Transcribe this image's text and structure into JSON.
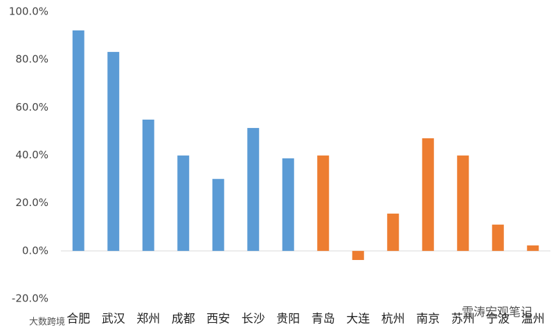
{
  "chart_data": {
    "type": "bar",
    "categories": [
      "合肥",
      "武汉",
      "郑州",
      "成都",
      "西安",
      "长沙",
      "贵阳",
      "青岛",
      "大连",
      "杭州",
      "南京",
      "苏州",
      "宁波",
      "温州"
    ],
    "values": [
      92.2,
      83.2,
      54.9,
      39.9,
      30.1,
      51.4,
      38.7,
      39.9,
      -3.8,
      15.6,
      47.1,
      39.9,
      11.0,
      2.3
    ],
    "colors": [
      "#5b9bd5",
      "#5b9bd5",
      "#5b9bd5",
      "#5b9bd5",
      "#5b9bd5",
      "#5b9bd5",
      "#5b9bd5",
      "#ed7d31",
      "#ed7d31",
      "#ed7d31",
      "#ed7d31",
      "#ed7d31",
      "#ed7d31",
      "#ed7d31"
    ],
    "ylim": [
      -20,
      100
    ],
    "yticks": [
      {
        "value": -20,
        "label": "-20.0%"
      },
      {
        "value": 0,
        "label": "0.0%"
      },
      {
        "value": 20,
        "label": "20.0%"
      },
      {
        "value": 40,
        "label": "40.0%"
      },
      {
        "value": 60,
        "label": "60.0%"
      },
      {
        "value": 80,
        "label": "80.0%"
      },
      {
        "value": 100,
        "label": "100.0%"
      }
    ],
    "grid": false,
    "annotations": [
      "雪涛宏观笔记",
      "大数跨境"
    ]
  }
}
